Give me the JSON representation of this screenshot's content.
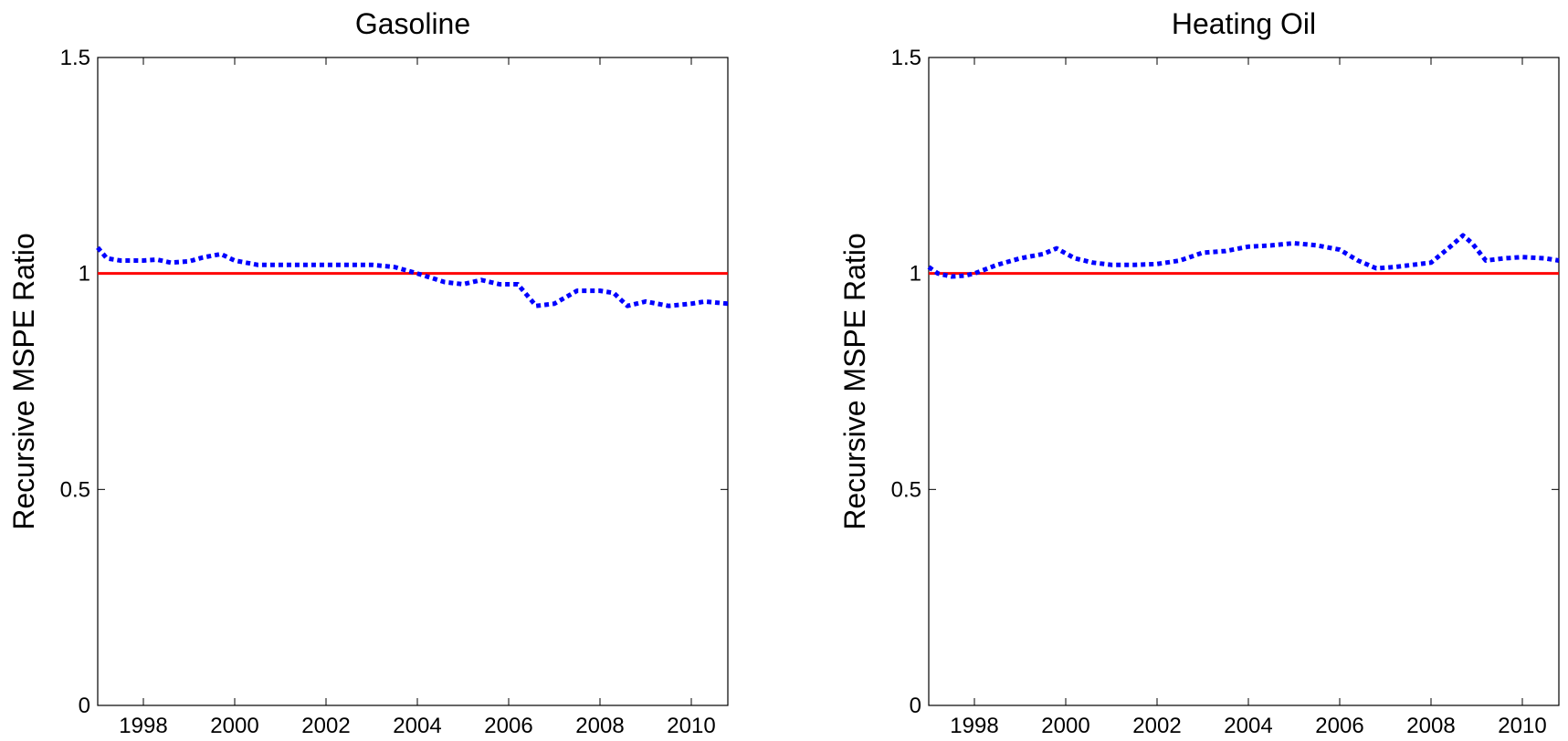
{
  "chart_data": [
    {
      "type": "line",
      "title": "Gasoline",
      "xlabel": "",
      "ylabel": "Recursive MSPE Ratio",
      "xlim": [
        1997.0,
        2010.8
      ],
      "ylim": [
        0,
        1.5
      ],
      "xticks": [
        1998,
        2000,
        2002,
        2004,
        2006,
        2008,
        2010
      ],
      "xtick_labels": [
        "1998",
        "2000",
        "2002",
        "2004",
        "2006",
        "2008",
        "2010"
      ],
      "yticks": [
        0,
        0.5,
        1,
        1.5
      ],
      "ytick_labels": [
        "0",
        "0.5",
        "1",
        "1.5"
      ],
      "grid": false,
      "reference_line": {
        "y": 1.0,
        "color": "#ff0000",
        "style": "solid"
      },
      "series": [
        {
          "color": "#0000ff",
          "style": "dotted",
          "x": [
            1997.0,
            1997.2,
            1997.5,
            1998.0,
            1998.3,
            1998.6,
            1999.0,
            1999.3,
            1999.7,
            2000.0,
            2000.5,
            2001.0,
            2001.5,
            2002.0,
            2002.5,
            2003.0,
            2003.5,
            2004.0,
            2004.3,
            2004.6,
            2005.0,
            2005.4,
            2005.8,
            2006.2,
            2006.6,
            2007.0,
            2007.5,
            2008.0,
            2008.3,
            2008.6,
            2009.0,
            2009.5,
            2010.0,
            2010.3,
            2010.8
          ],
          "y": [
            1.06,
            1.035,
            1.03,
            1.03,
            1.032,
            1.025,
            1.028,
            1.037,
            1.045,
            1.03,
            1.02,
            1.02,
            1.02,
            1.02,
            1.02,
            1.02,
            1.015,
            1.0,
            0.99,
            0.98,
            0.975,
            0.985,
            0.975,
            0.975,
            0.925,
            0.93,
            0.96,
            0.96,
            0.955,
            0.925,
            0.935,
            0.925,
            0.93,
            0.935,
            0.93
          ]
        }
      ]
    },
    {
      "type": "line",
      "title": "Heating Oil",
      "xlabel": "",
      "ylabel": "Recursive MSPE Ratio",
      "xlim": [
        1997.0,
        2010.8
      ],
      "ylim": [
        0,
        1.5
      ],
      "xticks": [
        1998,
        2000,
        2002,
        2004,
        2006,
        2008,
        2010
      ],
      "xtick_labels": [
        "1998",
        "2000",
        "2002",
        "2004",
        "2006",
        "2008",
        "2010"
      ],
      "yticks": [
        0,
        0.5,
        1,
        1.5
      ],
      "ytick_labels": [
        "0",
        "0.5",
        "1",
        "1.5"
      ],
      "grid": false,
      "reference_line": {
        "y": 1.0,
        "color": "#ff0000",
        "style": "solid"
      },
      "series": [
        {
          "color": "#0000ff",
          "style": "dotted",
          "x": [
            1997.0,
            1997.2,
            1997.5,
            1997.8,
            1998.0,
            1998.5,
            1999.0,
            1999.5,
            1999.8,
            2000.2,
            2000.6,
            2001.0,
            2001.5,
            2002.0,
            2002.5,
            2003.0,
            2003.5,
            2004.0,
            2004.5,
            2005.0,
            2005.5,
            2006.0,
            2006.4,
            2006.8,
            2007.2,
            2007.6,
            2008.0,
            2008.4,
            2008.7,
            2008.9,
            2009.2,
            2009.6,
            2010.0,
            2010.5,
            2010.8
          ],
          "y": [
            1.015,
            1.0,
            0.993,
            0.995,
            1.0,
            1.02,
            1.035,
            1.045,
            1.058,
            1.035,
            1.025,
            1.02,
            1.02,
            1.022,
            1.03,
            1.048,
            1.052,
            1.062,
            1.065,
            1.07,
            1.065,
            1.055,
            1.03,
            1.012,
            1.015,
            1.02,
            1.025,
            1.06,
            1.088,
            1.07,
            1.03,
            1.035,
            1.038,
            1.035,
            1.03
          ]
        }
      ]
    }
  ]
}
